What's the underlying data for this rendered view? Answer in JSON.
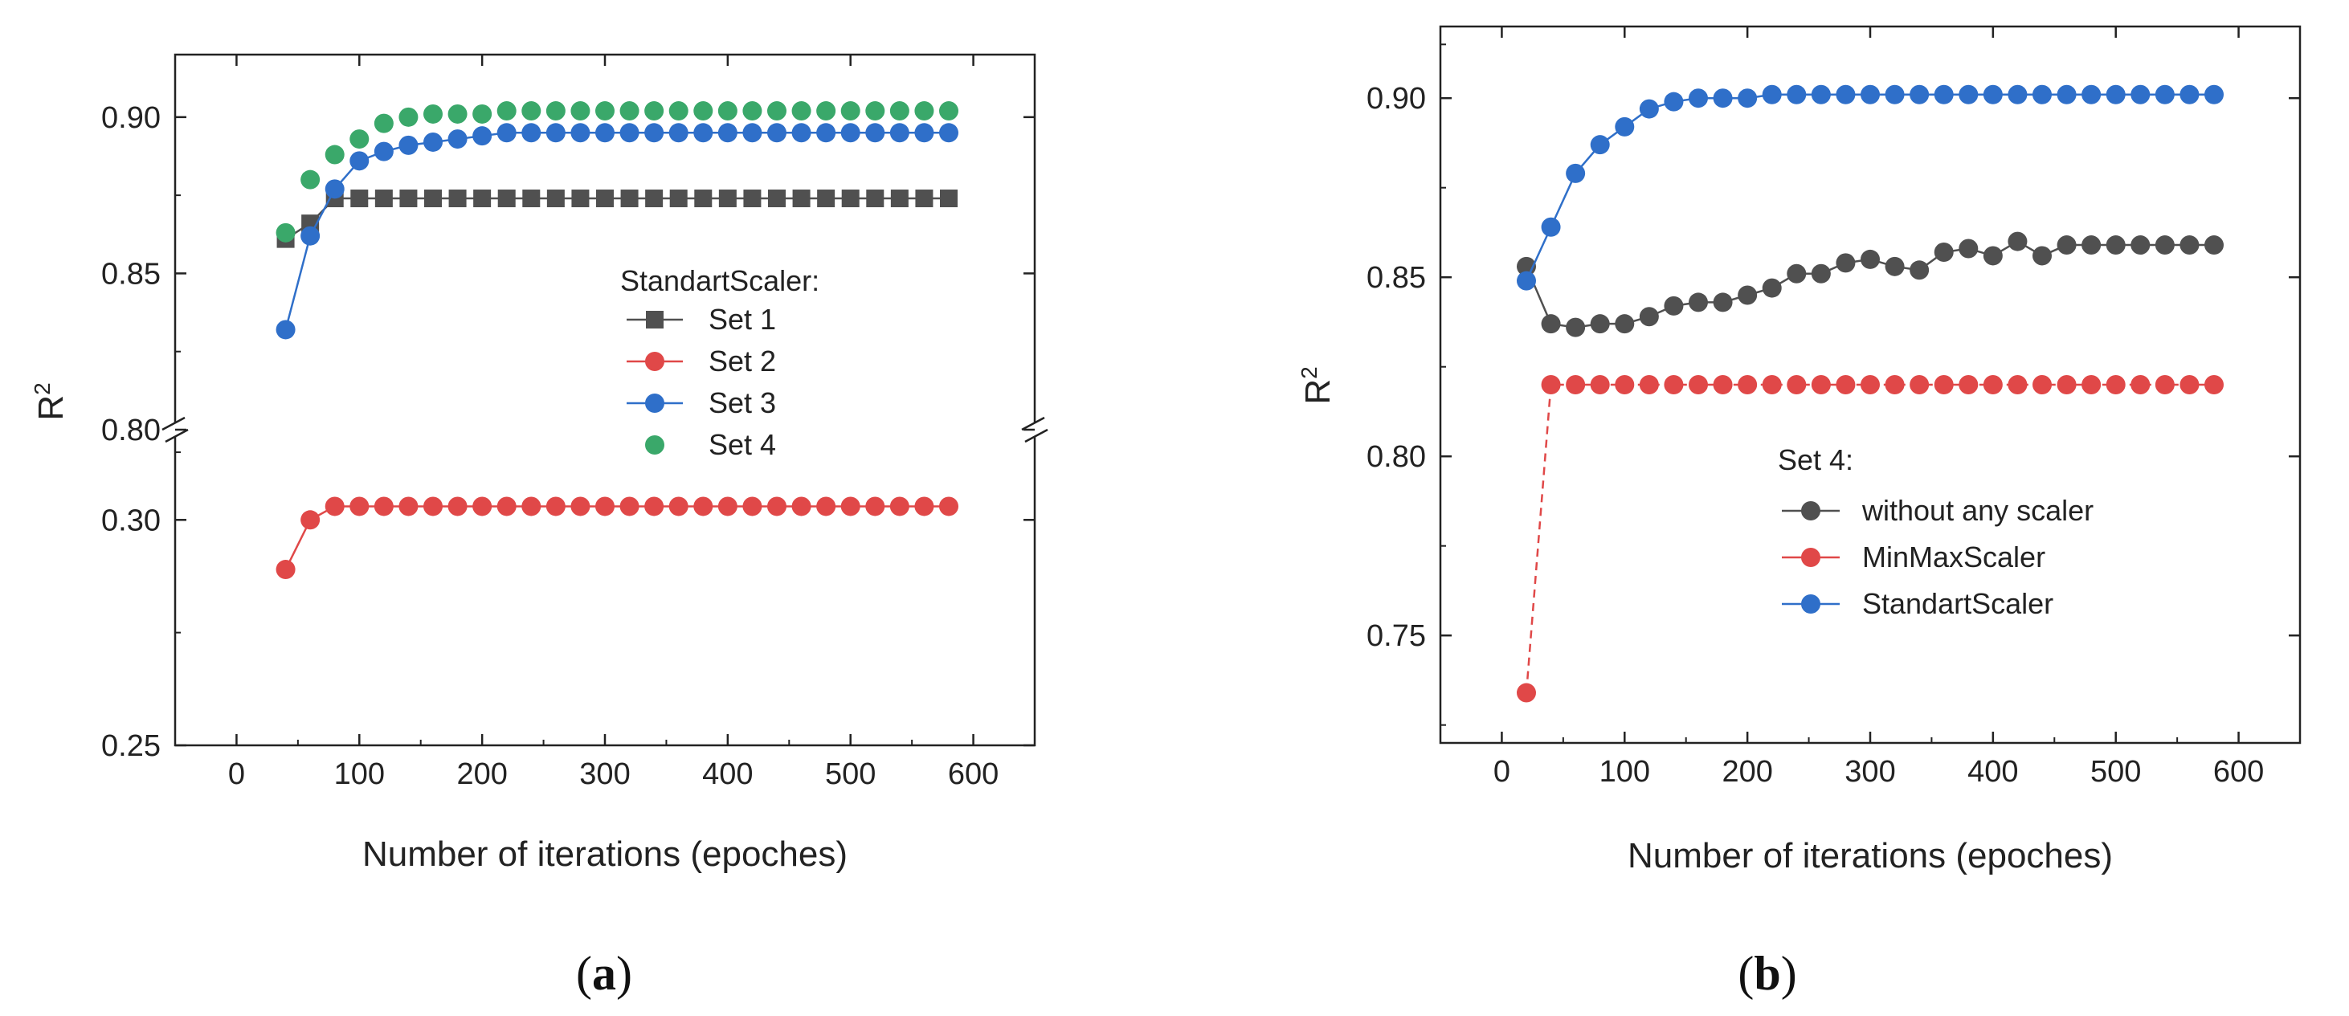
{
  "chart_data": [
    {
      "type": "line",
      "panel": "a",
      "xlabel": "Number of iterations (epoches)",
      "ylabel": "R",
      "ylabel_superscript": "2",
      "xlim": [
        -50,
        650
      ],
      "x_ticks": [
        0,
        100,
        200,
        300,
        400,
        500,
        600
      ],
      "y_break": {
        "lower_range": [
          0.25,
          0.32
        ],
        "upper_range": [
          0.8,
          0.92
        ]
      },
      "y_ticks_upper": [
        "0.80",
        "0.85",
        "0.90"
      ],
      "y_ticks_lower": [
        "0.25",
        "0.30"
      ],
      "legend": {
        "title": "StandartScaler:",
        "placement": "center-right"
      },
      "x": [
        40,
        60,
        80,
        100,
        120,
        140,
        160,
        180,
        200,
        220,
        240,
        260,
        280,
        300,
        320,
        340,
        360,
        380,
        400,
        420,
        440,
        460,
        480,
        500,
        520,
        540,
        560,
        580
      ],
      "series": [
        {
          "name": "Set 1",
          "color": "#505050",
          "marker": "square",
          "values": [
            0.861,
            0.866,
            0.874,
            0.874,
            0.874,
            0.874,
            0.874,
            0.874,
            0.874,
            0.874,
            0.874,
            0.874,
            0.874,
            0.874,
            0.874,
            0.874,
            0.874,
            0.874,
            0.874,
            0.874,
            0.874,
            0.874,
            0.874,
            0.874,
            0.874,
            0.874,
            0.874,
            0.874
          ]
        },
        {
          "name": "Set 2",
          "color": "#e04848",
          "marker": "circle",
          "values": [
            0.289,
            0.3,
            0.303,
            0.303,
            0.303,
            0.303,
            0.303,
            0.303,
            0.303,
            0.303,
            0.303,
            0.303,
            0.303,
            0.303,
            0.303,
            0.303,
            0.303,
            0.303,
            0.303,
            0.303,
            0.303,
            0.303,
            0.303,
            0.303,
            0.303,
            0.303,
            0.303,
            0.303
          ]
        },
        {
          "name": "Set 3",
          "color": "#2f6fc9",
          "marker": "circle",
          "values": [
            0.832,
            0.862,
            0.877,
            0.886,
            0.889,
            0.891,
            0.892,
            0.893,
            0.894,
            0.895,
            0.895,
            0.895,
            0.895,
            0.895,
            0.895,
            0.895,
            0.895,
            0.895,
            0.895,
            0.895,
            0.895,
            0.895,
            0.895,
            0.895,
            0.895,
            0.895,
            0.895,
            0.895
          ]
        },
        {
          "name": "Set 4",
          "color": "#3aa86a",
          "marker": "circle",
          "values": [
            0.863,
            0.88,
            0.888,
            0.893,
            0.898,
            0.9,
            0.901,
            0.901,
            0.901,
            0.902,
            0.902,
            0.902,
            0.902,
            0.902,
            0.902,
            0.902,
            0.902,
            0.902,
            0.902,
            0.902,
            0.902,
            0.902,
            0.902,
            0.902,
            0.902,
            0.902,
            0.902,
            0.902
          ]
        }
      ]
    },
    {
      "type": "line",
      "panel": "b",
      "xlabel": "Number of iterations (epoches)",
      "ylabel": "R",
      "ylabel_superscript": "2",
      "xlim": [
        -50,
        650
      ],
      "ylim": [
        0.72,
        0.92
      ],
      "x_ticks": [
        0,
        100,
        200,
        300,
        400,
        500,
        600
      ],
      "y_ticks": [
        "0.75",
        "0.80",
        "0.85",
        "0.90"
      ],
      "legend": {
        "title": "Set 4:",
        "placement": "center-right"
      },
      "x": [
        20,
        40,
        60,
        80,
        100,
        120,
        140,
        160,
        180,
        200,
        220,
        240,
        260,
        280,
        300,
        320,
        340,
        360,
        380,
        400,
        420,
        440,
        460,
        480,
        500,
        520,
        540,
        560,
        580
      ],
      "series": [
        {
          "name": "without any scaler",
          "color": "#505050",
          "marker": "circle",
          "values": [
            0.853,
            0.837,
            0.836,
            0.837,
            0.837,
            0.839,
            0.842,
            0.843,
            0.843,
            0.845,
            0.847,
            0.851,
            0.851,
            0.854,
            0.855,
            0.853,
            0.852,
            0.857,
            0.858,
            0.856,
            0.86,
            0.856,
            0.859,
            0.859,
            0.859,
            0.859,
            0.859,
            0.859,
            0.859
          ]
        },
        {
          "name": "MinMaxScaler",
          "color": "#e04848",
          "marker": "circle",
          "values": [
            0.734,
            0.82,
            0.82,
            0.82,
            0.82,
            0.82,
            0.82,
            0.82,
            0.82,
            0.82,
            0.82,
            0.82,
            0.82,
            0.82,
            0.82,
            0.82,
            0.82,
            0.82,
            0.82,
            0.82,
            0.82,
            0.82,
            0.82,
            0.82,
            0.82,
            0.82,
            0.82,
            0.82,
            0.82
          ]
        },
        {
          "name": "StandartScaler",
          "color": "#2f6fc9",
          "marker": "circle",
          "values": [
            0.849,
            0.864,
            0.879,
            0.887,
            0.892,
            0.897,
            0.899,
            0.9,
            0.9,
            0.9,
            0.901,
            0.901,
            0.901,
            0.901,
            0.901,
            0.901,
            0.901,
            0.901,
            0.901,
            0.901,
            0.901,
            0.901,
            0.901,
            0.901,
            0.901,
            0.901,
            0.901,
            0.901,
            0.901
          ]
        }
      ]
    }
  ],
  "captions": {
    "a_open": "(",
    "a_letter": "a",
    "a_close": ")",
    "b_open": "(",
    "b_letter": "b",
    "b_close": ")"
  }
}
